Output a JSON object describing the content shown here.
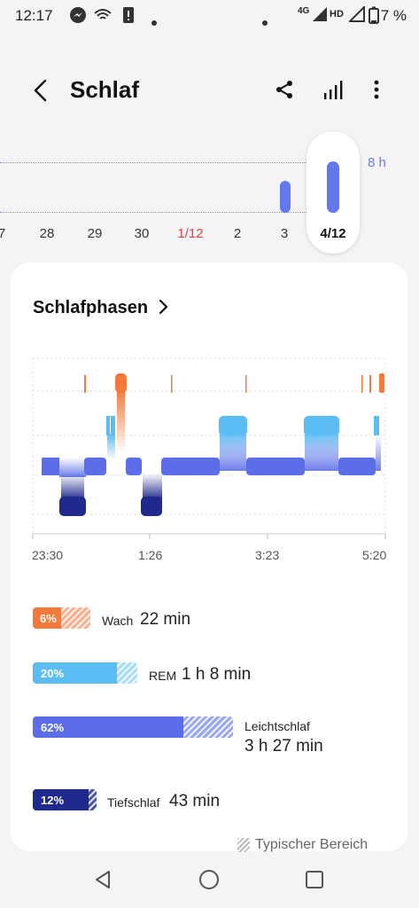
{
  "status": {
    "time": "12:17",
    "signal_label": "4G",
    "hd_label": "HD",
    "battery": "7 %"
  },
  "header": {
    "title": "Schlaf"
  },
  "week": {
    "goal_label": "8 h",
    "dates": [
      "7",
      "28",
      "29",
      "30",
      "1/12",
      "2",
      "3",
      "4/12"
    ],
    "highlight_date": "1/12",
    "selected_date": "4/12"
  },
  "card": {
    "title": "Schlafphasen",
    "x_axis": [
      "23:30",
      "1:26",
      "3:23",
      "5:20"
    ],
    "stages": [
      {
        "key": "wake",
        "name": "Wach",
        "pct_label": "6%",
        "pct": 6,
        "duration": "22 min",
        "color": "#f47a3c"
      },
      {
        "key": "rem",
        "name": "REM",
        "pct_label": "20%",
        "pct": 20,
        "duration": "1 h 8 min",
        "color": "#5bbdf3"
      },
      {
        "key": "light",
        "name": "Leichtschlaf",
        "pct_label": "62%",
        "pct": 62,
        "duration": "3 h 27 min",
        "color": "#5b6ee8"
      },
      {
        "key": "deep",
        "name": "Tiefschlaf",
        "pct_label": "12%",
        "pct": 12,
        "duration": "43 min",
        "color": "#1f2a8c"
      }
    ],
    "typical_label": "Typischer Bereich"
  }
}
